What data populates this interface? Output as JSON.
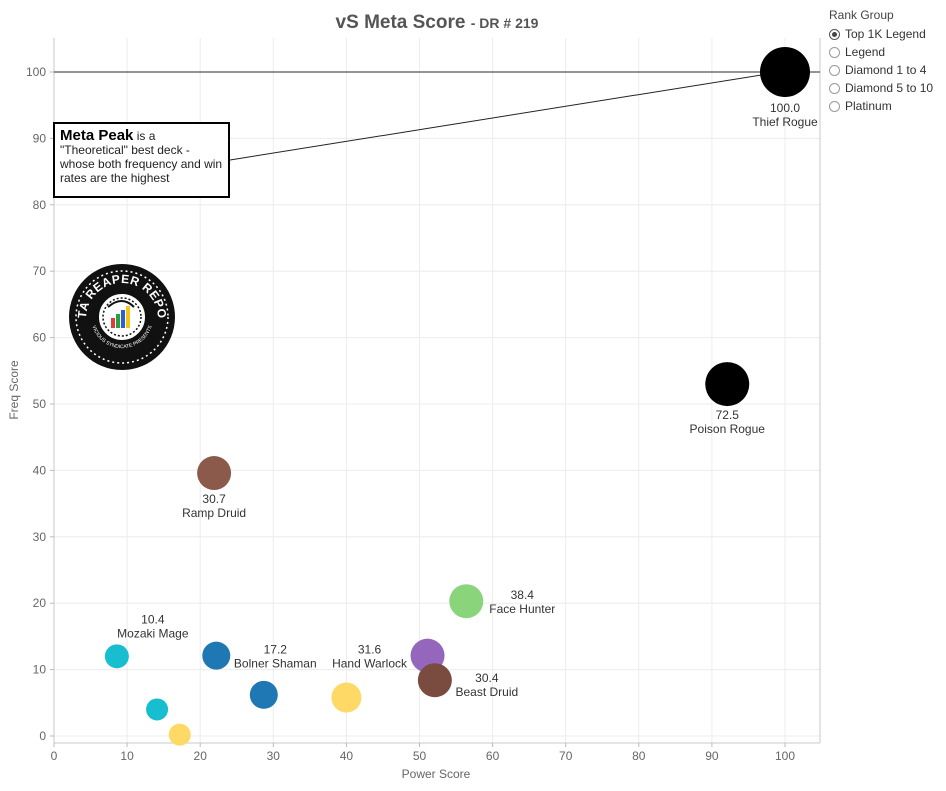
{
  "title": {
    "main": "vS Meta Score",
    "sub": "DR # 219"
  },
  "legend": {
    "title": "Rank Group",
    "options": [
      {
        "label": "Top 1K Legend",
        "selected": true
      },
      {
        "label": "Legend",
        "selected": false
      },
      {
        "label": "Diamond 1 to 4",
        "selected": false
      },
      {
        "label": "Diamond 5 to 10",
        "selected": false
      },
      {
        "label": "Platinum",
        "selected": false
      }
    ]
  },
  "annotation": {
    "bold": "Meta Peak",
    "text": " is a \"Theoretical\" best deck - whose both frequency and win rates are the highest"
  },
  "logo": {
    "text": "DATA REAPER REPORT",
    "subtext": "VICIOUS SYNDICATE PRESENTS"
  },
  "chart_data": {
    "type": "scatter",
    "title": "vS Meta Score - DR # 219",
    "xlabel": "Power Score",
    "ylabel": "Freq Score",
    "xlim": [
      0,
      105
    ],
    "ylim": [
      -1,
      105
    ],
    "x_ticks": [
      0,
      10,
      20,
      30,
      40,
      50,
      60,
      70,
      80,
      90,
      100
    ],
    "y_ticks": [
      0,
      10,
      20,
      30,
      40,
      50,
      60,
      70,
      80,
      90,
      100
    ],
    "grid": true,
    "reference_line": {
      "y": 100
    },
    "points": [
      {
        "name": "Thief Rogue",
        "score": "100.0",
        "x": 100,
        "y": 100,
        "r": 25,
        "color": "#000000"
      },
      {
        "name": "Poison Rogue",
        "score": "72.5",
        "x": 92.1,
        "y": 53,
        "r": 22,
        "color": "#000000"
      },
      {
        "name": "Ramp Druid",
        "score": "30.7",
        "x": 21.9,
        "y": 39.6,
        "r": 17,
        "color": "#8c5a4a"
      },
      {
        "name": "Face Hunter",
        "score": "38.4",
        "x": 56.4,
        "y": 20.3,
        "r": 17,
        "color": "#8ad47c"
      },
      {
        "name": "Hand Warlock",
        "score": "31.6",
        "x": 51.1,
        "y": 12.1,
        "r": 17,
        "color": "#9467bd"
      },
      {
        "name": "Beast Druid",
        "score": "30.4",
        "x": 52.1,
        "y": 8.4,
        "r": 17,
        "color": "#7a4b3f"
      },
      {
        "name": "Bolner Shaman",
        "score": "17.2",
        "x": 22.2,
        "y": 12.1,
        "r": 14,
        "color": "#1f77b4"
      },
      {
        "name": "Mozaki Mage",
        "score": "10.4",
        "x": 8.6,
        "y": 12.0,
        "r": 12,
        "color": "#17becf"
      },
      {
        "name": "",
        "score": "",
        "x": 28.7,
        "y": 6.2,
        "r": 14,
        "color": "#1f77b4"
      },
      {
        "name": "",
        "score": "",
        "x": 40.0,
        "y": 5.8,
        "r": 15,
        "color": "#ffd966"
      },
      {
        "name": "",
        "score": "",
        "x": 14.1,
        "y": 4.0,
        "r": 11,
        "color": "#17becf"
      },
      {
        "name": "",
        "score": "",
        "x": 17.2,
        "y": 0.2,
        "r": 11,
        "color": "#ffd966"
      }
    ]
  }
}
